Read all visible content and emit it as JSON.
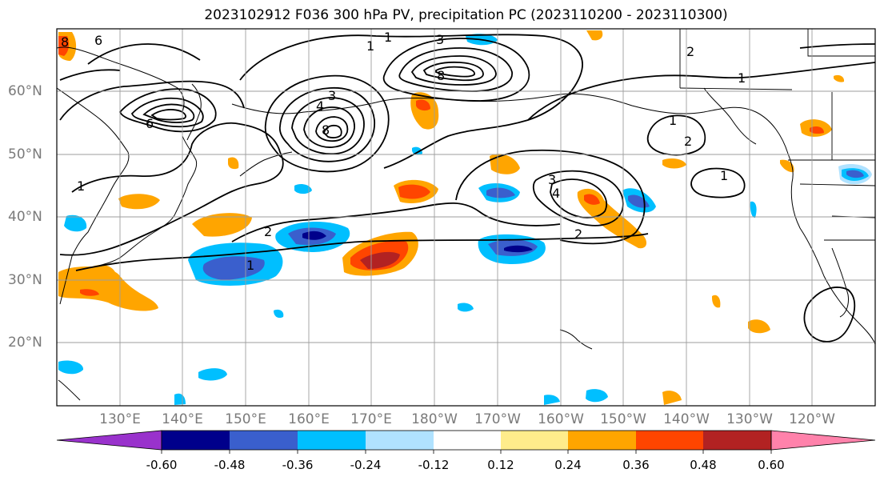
{
  "title": "2023102912 F036 300 hPa PV, precipitation PC (2023110200 - 2023110300)",
  "map": {
    "projection": "PlateCarree",
    "lon_range": [
      "120°E",
      "120°W"
    ],
    "lat_range": [
      "10°N",
      "70°N"
    ],
    "lat_labels": [
      "60°N",
      "50°N",
      "40°N",
      "30°N",
      "20°N"
    ],
    "lon_labels": [
      "130°E",
      "140°E",
      "150°E",
      "160°E",
      "170°E",
      "180°W",
      "170°W",
      "160°W",
      "150°W",
      "140°W",
      "130°W",
      "120°W"
    ],
    "gridlines": true,
    "contour_color": "#000000",
    "contour_labels": [
      "1",
      "1",
      "1",
      "1",
      "1",
      "1",
      "1",
      "2",
      "2",
      "2",
      "2",
      "3",
      "3",
      "3",
      "4",
      "4",
      "6",
      "6",
      "8",
      "8",
      "8"
    ]
  },
  "colorbar": {
    "tick_labels": [
      "-0.60",
      "-0.48",
      "-0.36",
      "-0.24",
      "-0.12",
      "0.12",
      "0.24",
      "0.36",
      "0.48",
      "0.60"
    ],
    "colors": [
      "#9932cc",
      "#00008b",
      "#3a5fcd",
      "#00bfff",
      "#b0e2ff",
      "#ffffff",
      "#ffec8b",
      "#ffa500",
      "#ff4500",
      "#b22222",
      "#ff82ab"
    ],
    "extend": "both"
  }
}
